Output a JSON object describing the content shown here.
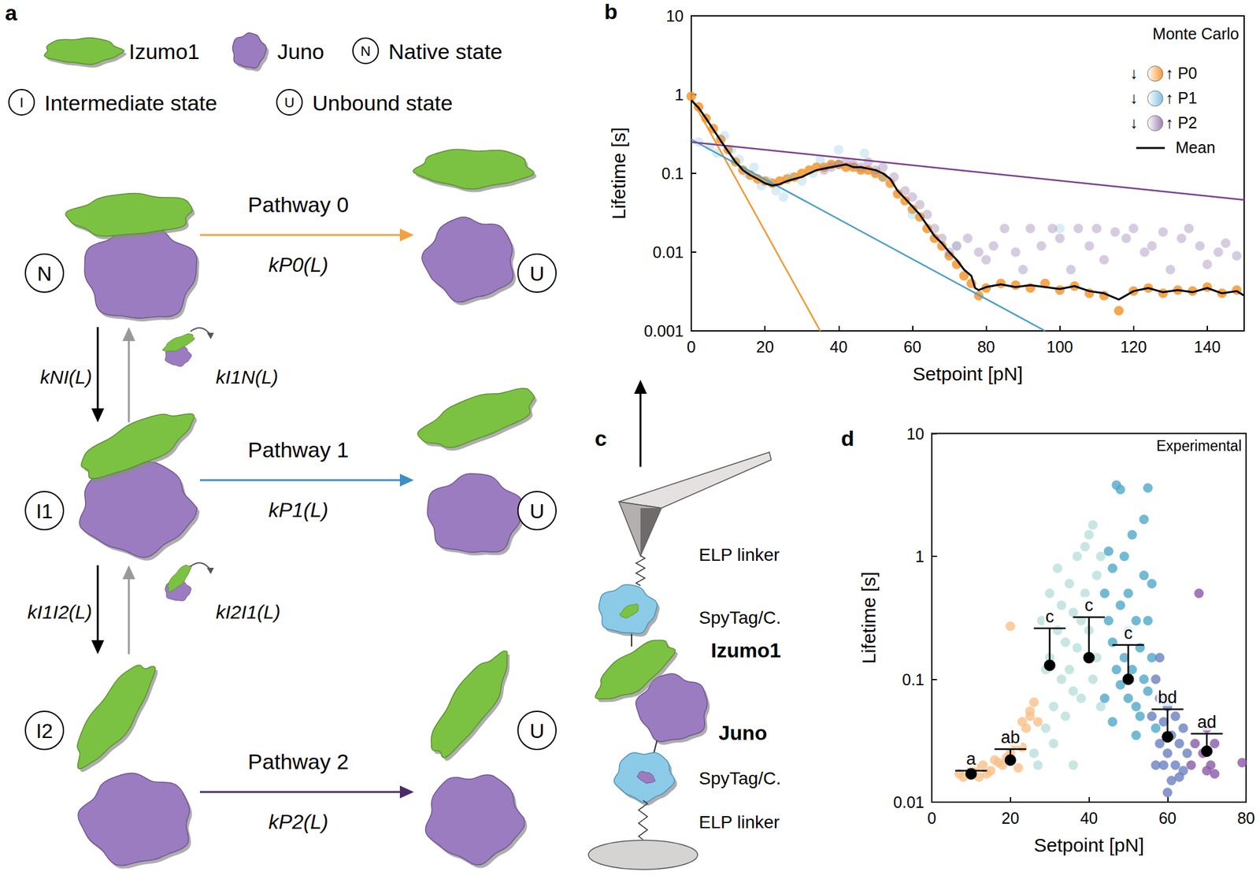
{
  "panel_labels": [
    "a",
    "b",
    "c",
    "d"
  ],
  "diagram_a": {
    "legend": [
      {
        "label": "Izumo1"
      },
      {
        "label": "Juno"
      },
      {
        "symbol": "N",
        "label": "Native state"
      },
      {
        "symbol": "I",
        "label": "Intermediate state"
      },
      {
        "symbol": "U",
        "label": "Unbound state"
      }
    ],
    "states": [
      "N",
      "I1",
      "I2"
    ],
    "unbound_state": "U",
    "pathways": [
      {
        "name": "Pathway 0",
        "rate": "kP0(L)",
        "color": "#f5a040"
      },
      {
        "name": "Pathway 1",
        "rate": "kP1(L)",
        "color": "#3a8fc4"
      },
      {
        "name": "Pathway 2",
        "rate": "kP2(L)",
        "color": "#4b2a6b"
      }
    ],
    "transitions": [
      {
        "forward": "kNI(L)",
        "backward": "kI1N(L)"
      },
      {
        "forward": "kI1I2(L)",
        "backward": "kI2I1(L)"
      }
    ]
  },
  "schematic_c": {
    "labels": [
      "ELP linker",
      "SpyTag/C.",
      "Izumo1",
      "Juno",
      "SpyTag/C.",
      "ELP linker"
    ]
  },
  "chart_data": [
    {
      "type": "line",
      "x_label": "Setpoint [pN]",
      "y_label": "Lifetime [s]",
      "annotations": {
        "corner_note": "Monte Carlo",
        "legend_low": "↓",
        "legend_high": "↑"
      },
      "xlim": [
        0,
        150
      ],
      "xticks": [
        0,
        20,
        40,
        60,
        80,
        100,
        120,
        140
      ],
      "ylim": [
        0.001,
        10
      ],
      "yticks": [
        0.001,
        0.01,
        0.1,
        1,
        10
      ],
      "log": "y",
      "grid": false,
      "legend": "upper right",
      "series": [
        {
          "name": "P0",
          "type": "scatter",
          "marker": "circle",
          "color": "#f5962e",
          "x": [
            0,
            2,
            4,
            6,
            8,
            10,
            12,
            14,
            16,
            18,
            20,
            22,
            24,
            26,
            28,
            30,
            32,
            34,
            36,
            38,
            40,
            42,
            44,
            46,
            48,
            50,
            52,
            54,
            56,
            58,
            60,
            62,
            64,
            66,
            68,
            70,
            72,
            74,
            76,
            78,
            80,
            84,
            88,
            92,
            96,
            100,
            104,
            108,
            112,
            116,
            120,
            124,
            128,
            132,
            136,
            140,
            144,
            148
          ],
          "values": [
            0.95,
            0.7,
            0.5,
            0.37,
            0.27,
            0.2,
            0.14,
            0.11,
            0.095,
            0.085,
            0.08,
            0.075,
            0.08,
            0.085,
            0.09,
            0.1,
            0.11,
            0.12,
            0.12,
            0.13,
            0.13,
            0.12,
            0.12,
            0.11,
            0.11,
            0.1,
            0.09,
            0.075,
            0.055,
            0.045,
            0.035,
            0.028,
            0.02,
            0.015,
            0.012,
            0.009,
            0.007,
            0.005,
            0.004,
            0.0028,
            0.0035,
            0.004,
            0.0038,
            0.0035,
            0.004,
            0.0033,
            0.0037,
            0.003,
            0.0028,
            0.0018,
            0.0032,
            0.0035,
            0.003,
            0.0033,
            0.0032,
            0.0036,
            0.003,
            0.0033
          ]
        },
        {
          "name": "P1",
          "type": "scatter",
          "marker": "circle",
          "color": "#7fc3de",
          "x": [
            2,
            5,
            7,
            9,
            11,
            13,
            15,
            17,
            19,
            21,
            23,
            25,
            27,
            30,
            33,
            35,
            40,
            47,
            52,
            60,
            72,
            100
          ],
          "values": [
            0.25,
            0.22,
            0.18,
            0.3,
            0.2,
            0.15,
            0.1,
            0.12,
            0.07,
            0.08,
            0.06,
            0.05,
            0.09,
            0.08,
            0.1,
            0.15,
            0.2,
            0.18,
            0.09,
            0.03,
            0.012,
            0.02
          ]
        },
        {
          "name": "P2",
          "type": "scatter",
          "marker": "circle",
          "color": "#9a7fae",
          "x": [
            36,
            38,
            40,
            42,
            44,
            46,
            48,
            50,
            52,
            55,
            58,
            60,
            62,
            64,
            66,
            68,
            70,
            72,
            75,
            78,
            80,
            82,
            85,
            88,
            90,
            92,
            95,
            98,
            100,
            103,
            105,
            108,
            110,
            112,
            115,
            118,
            120,
            123,
            125,
            128,
            130,
            133,
            135,
            138,
            140,
            143,
            145,
            148
          ],
          "values": [
            0.11,
            0.12,
            0.13,
            0.14,
            0.13,
            0.12,
            0.14,
            0.11,
            0.12,
            0.09,
            0.06,
            0.05,
            0.04,
            0.03,
            0.02,
            0.015,
            0.01,
            0.012,
            0.015,
            0.01,
            0.008,
            0.012,
            0.02,
            0.01,
            0.006,
            0.02,
            0.012,
            0.02,
            0.015,
            0.006,
            0.02,
            0.012,
            0.02,
            0.008,
            0.018,
            0.015,
            0.02,
            0.01,
            0.012,
            0.018,
            0.006,
            0.015,
            0.02,
            0.012,
            0.007,
            0.01,
            0.013,
            0.009
          ]
        },
        {
          "name": "Mean",
          "type": "line",
          "line_style": "solid",
          "color": "#000000",
          "x": [
            0,
            2,
            4,
            6,
            8,
            10,
            12,
            14,
            16,
            18,
            20,
            22,
            24,
            26,
            28,
            30,
            32,
            34,
            36,
            38,
            40,
            42,
            44,
            46,
            48,
            50,
            52,
            54,
            56,
            58,
            60,
            62,
            64,
            66,
            68,
            70,
            72,
            74,
            76,
            77,
            78,
            80,
            84,
            88,
            92,
            96,
            100,
            104,
            108,
            112,
            116,
            120,
            124,
            128,
            132,
            136,
            140,
            144,
            148,
            150
          ],
          "values": [
            0.85,
            0.68,
            0.5,
            0.36,
            0.26,
            0.19,
            0.14,
            0.11,
            0.095,
            0.085,
            0.075,
            0.07,
            0.073,
            0.08,
            0.085,
            0.09,
            0.1,
            0.11,
            0.115,
            0.12,
            0.125,
            0.13,
            0.12,
            0.12,
            0.115,
            0.11,
            0.1,
            0.085,
            0.06,
            0.048,
            0.038,
            0.03,
            0.022,
            0.016,
            0.013,
            0.01,
            0.008,
            0.006,
            0.005,
            0.0035,
            0.0033,
            0.0036,
            0.0039,
            0.0036,
            0.0038,
            0.0036,
            0.0034,
            0.0037,
            0.0032,
            0.003,
            0.0025,
            0.0032,
            0.0035,
            0.0031,
            0.0033,
            0.0031,
            0.0035,
            0.003,
            0.0032,
            0.0028
          ]
        },
        {
          "name": "P0",
          "type": "line",
          "line_style": "solid",
          "color": "#f5962e",
          "x": [
            0,
            35
          ],
          "values": [
            0.9,
            0.001
          ]
        },
        {
          "name": "P1",
          "type": "line",
          "line_style": "solid",
          "color": "#4a9fc8",
          "x": [
            0,
            96
          ],
          "values": [
            0.27,
            0.001
          ]
        },
        {
          "name": "P2",
          "type": "line",
          "line_style": "solid",
          "color": "#7b3f8f",
          "x": [
            0,
            150
          ],
          "values": [
            0.25,
            0.046
          ]
        }
      ]
    },
    {
      "type": "scatter",
      "x_label": "Setpoint [pN]",
      "y_label": "Lifetime [s]",
      "annotations": {
        "corner_note": "Experimental"
      },
      "xlim": [
        0,
        80
      ],
      "xticks": [
        0,
        20,
        40,
        60,
        80
      ],
      "ylim": [
        0.01,
        10
      ],
      "yticks": [
        0.01,
        0.1,
        1,
        10
      ],
      "log": "y",
      "grid": false,
      "series": [
        {
          "type": "scatter",
          "marker": "circle",
          "color": "#f9c08a",
          "x": [
            7,
            8,
            10,
            11,
            12,
            13,
            14,
            15,
            16,
            17,
            18,
            19,
            20,
            20,
            21,
            22,
            23,
            23,
            24,
            25,
            25,
            26,
            27
          ],
          "values": [
            0.017,
            0.016,
            0.018,
            0.019,
            0.016,
            0.02,
            0.017,
            0.018,
            0.022,
            0.021,
            0.02,
            0.023,
            0.025,
            0.27,
            0.03,
            0.019,
            0.028,
            0.045,
            0.04,
            0.05,
            0.055,
            0.065,
            0.045
          ]
        },
        {
          "type": "scatter",
          "marker": "circle",
          "color": "#b9e0dc",
          "x": [
            26,
            27,
            28,
            29,
            29,
            30,
            30,
            31,
            31,
            32,
            32,
            33,
            33,
            34,
            34,
            35,
            35,
            36,
            36,
            36,
            37,
            37,
            38,
            38,
            39,
            39,
            40,
            40,
            41,
            41,
            42,
            42,
            43,
            43
          ],
          "values": [
            0.025,
            0.02,
            0.3,
            0.12,
            0.04,
            0.15,
            0.5,
            0.06,
            0.03,
            0.25,
            0.8,
            0.1,
            0.4,
            0.2,
            0.05,
            0.6,
            0.12,
            0.08,
            0.35,
            0.02,
            1.0,
            0.18,
            0.3,
            0.07,
            0.5,
            1.2,
            1.5,
            0.25,
            1.8,
            0.1,
            0.7,
            0.15,
            1.0,
            0.06
          ]
        },
        {
          "type": "scatter",
          "marker": "circle",
          "color": "#4fa9c9",
          "x": [
            44,
            44,
            45,
            45,
            46,
            46,
            46,
            47,
            47,
            48,
            48,
            48,
            49,
            49,
            50,
            50,
            50,
            51,
            51,
            52,
            52,
            52,
            53,
            53,
            54,
            54,
            54,
            55,
            55,
            55,
            56,
            56,
            57
          ],
          "values": [
            0.5,
            0.07,
            0.3,
            1.1,
            0.2,
            0.8,
            0.045,
            3.8,
            0.12,
            3.5,
            0.4,
            0.09,
            1.0,
            0.15,
            0.5,
            0.07,
            0.25,
            0.12,
            1.5,
            0.3,
            0.06,
            0.035,
            0.18,
            0.05,
            0.1,
            2.0,
            0.7,
            3.6,
            0.08,
            0.3,
            0.6,
            0.15,
            0.04
          ]
        },
        {
          "type": "scatter",
          "marker": "circle",
          "color": "#6a7fc0",
          "x": [
            56,
            57,
            57,
            58,
            58,
            58,
            59,
            59,
            60,
            60,
            60,
            61,
            61,
            62,
            62,
            63,
            63,
            64,
            64,
            65
          ],
          "values": [
            0.05,
            0.1,
            0.02,
            0.07,
            0.03,
            0.15,
            0.02,
            0.045,
            0.06,
            0.025,
            0.012,
            0.035,
            0.015,
            0.05,
            0.02,
            0.03,
            0.016,
            0.04,
            0.018,
            0.025
          ]
        },
        {
          "type": "scatter",
          "marker": "circle",
          "color": "#8a5aa8",
          "x": [
            66,
            67,
            68,
            69,
            70,
            70,
            71,
            72,
            72,
            79
          ],
          "values": [
            0.02,
            0.03,
            0.5,
            0.025,
            0.018,
            0.04,
            0.02,
            0.03,
            0.017,
            0.021
          ]
        },
        {
          "type": "errorbar",
          "marker": "circle",
          "color": "#000000",
          "x": [
            10,
            20,
            30,
            40,
            50,
            60,
            70
          ],
          "values": [
            0.017,
            0.022,
            0.13,
            0.15,
            0.1,
            0.034,
            0.026
          ],
          "error_high": [
            0.018,
            0.027,
            0.26,
            0.32,
            0.19,
            0.057,
            0.036
          ],
          "labels": [
            "a",
            "ab",
            "c",
            "c",
            "c",
            "bd",
            "ad"
          ]
        }
      ]
    }
  ]
}
